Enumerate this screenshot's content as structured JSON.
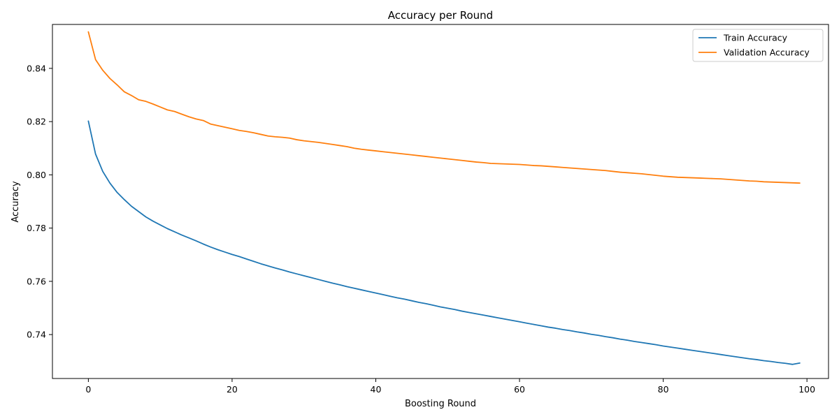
{
  "chart_data": {
    "type": "line",
    "title": "Accuracy per Round",
    "xlabel": "Boosting Round",
    "ylabel": "Accuracy",
    "xlim": [
      -5,
      103
    ],
    "ylim": [
      0.7235,
      0.8565
    ],
    "xticks": [
      0,
      20,
      40,
      60,
      80,
      100
    ],
    "yticks": [
      0.74,
      0.76,
      0.78,
      0.8,
      0.82,
      0.84
    ],
    "xtick_labels": [
      "0",
      "20",
      "40",
      "60",
      "80",
      "100"
    ],
    "ytick_labels": [
      "0.74",
      "0.76",
      "0.78",
      "0.80",
      "0.82",
      "0.84"
    ],
    "grid": false,
    "legend_position": "top-right",
    "series": [
      {
        "name": "Train Accuracy",
        "color": "#1f77b4",
        "x": [
          0,
          1,
          2,
          3,
          4,
          5,
          6,
          7,
          8,
          9,
          10,
          11,
          12,
          13,
          14,
          15,
          16,
          17,
          18,
          19,
          20,
          21,
          22,
          23,
          24,
          25,
          26,
          27,
          28,
          29,
          30,
          31,
          32,
          33,
          34,
          35,
          36,
          37,
          38,
          39,
          40,
          41,
          42,
          43,
          44,
          45,
          46,
          47,
          48,
          49,
          50,
          51,
          52,
          53,
          54,
          55,
          56,
          57,
          58,
          59,
          60,
          61,
          62,
          63,
          64,
          65,
          66,
          67,
          68,
          69,
          70,
          71,
          72,
          73,
          74,
          75,
          76,
          77,
          78,
          79,
          80,
          81,
          82,
          83,
          84,
          85,
          86,
          87,
          88,
          89,
          90,
          91,
          92,
          93,
          94,
          95,
          96,
          97,
          98,
          99
        ],
        "values": [
          0.8202,
          0.8078,
          0.8013,
          0.7969,
          0.7934,
          0.7907,
          0.7882,
          0.7862,
          0.7842,
          0.7826,
          0.7812,
          0.7798,
          0.7786,
          0.7774,
          0.7763,
          0.7752,
          0.774,
          0.7729,
          0.7719,
          0.771,
          0.7701,
          0.7693,
          0.7684,
          0.7675,
          0.7666,
          0.7658,
          0.765,
          0.7643,
          0.7635,
          0.7628,
          0.7621,
          0.7614,
          0.7607,
          0.76,
          0.7593,
          0.7587,
          0.758,
          0.7574,
          0.7568,
          0.7562,
          0.7556,
          0.755,
          0.7544,
          0.7538,
          0.7533,
          0.7527,
          0.7521,
          0.7516,
          0.751,
          0.7504,
          0.7499,
          0.7494,
          0.7488,
          0.7483,
          0.7478,
          0.7473,
          0.7468,
          0.7463,
          0.7458,
          0.7453,
          0.7448,
          0.7443,
          0.7438,
          0.7433,
          0.7428,
          0.7424,
          0.7419,
          0.7415,
          0.741,
          0.7406,
          0.7401,
          0.7397,
          0.7392,
          0.7388,
          0.7383,
          0.7379,
          0.7374,
          0.737,
          0.7366,
          0.7362,
          0.7357,
          0.7353,
          0.7349,
          0.7345,
          0.7341,
          0.7337,
          0.7333,
          0.7329,
          0.7325,
          0.7321,
          0.7317,
          0.7313,
          0.7309,
          0.7306,
          0.7302,
          0.7299,
          0.7295,
          0.7292,
          0.7288,
          0.7293
        ]
      },
      {
        "name": "Validation Accuracy",
        "color": "#ff7f0e",
        "x": [
          0,
          1,
          2,
          3,
          4,
          5,
          6,
          7,
          8,
          9,
          10,
          11,
          12,
          13,
          14,
          15,
          16,
          17,
          18,
          19,
          20,
          21,
          22,
          23,
          24,
          25,
          26,
          27,
          28,
          29,
          30,
          31,
          32,
          33,
          34,
          35,
          36,
          37,
          38,
          39,
          40,
          41,
          42,
          43,
          44,
          45,
          46,
          47,
          48,
          49,
          50,
          51,
          52,
          53,
          54,
          55,
          56,
          57,
          58,
          59,
          60,
          61,
          62,
          63,
          64,
          65,
          66,
          67,
          68,
          69,
          70,
          71,
          72,
          73,
          74,
          75,
          76,
          77,
          78,
          79,
          80,
          81,
          82,
          83,
          84,
          85,
          86,
          87,
          88,
          89,
          90,
          91,
          92,
          93,
          94,
          95,
          96,
          97,
          98,
          99
        ],
        "values": [
          0.8537,
          0.8433,
          0.8393,
          0.8362,
          0.8338,
          0.8312,
          0.8298,
          0.8282,
          0.8276,
          0.8266,
          0.8255,
          0.8244,
          0.8238,
          0.8228,
          0.8218,
          0.821,
          0.8204,
          0.8191,
          0.8185,
          0.8179,
          0.8173,
          0.8167,
          0.8163,
          0.8158,
          0.8152,
          0.8146,
          0.8143,
          0.8141,
          0.8138,
          0.8132,
          0.8128,
          0.8125,
          0.8122,
          0.8118,
          0.8114,
          0.811,
          0.8106,
          0.81,
          0.8096,
          0.8093,
          0.809,
          0.8087,
          0.8084,
          0.8081,
          0.8078,
          0.8075,
          0.8072,
          0.8069,
          0.8066,
          0.8063,
          0.806,
          0.8057,
          0.8054,
          0.8051,
          0.8048,
          0.8046,
          0.8043,
          0.8042,
          0.8041,
          0.804,
          0.8039,
          0.8037,
          0.8035,
          0.8034,
          0.8032,
          0.803,
          0.8028,
          0.8026,
          0.8024,
          0.8022,
          0.802,
          0.8018,
          0.8016,
          0.8013,
          0.801,
          0.8008,
          0.8006,
          0.8004,
          0.8001,
          0.7998,
          0.7995,
          0.7993,
          0.7991,
          0.799,
          0.7989,
          0.7988,
          0.7987,
          0.7986,
          0.7985,
          0.7983,
          0.7981,
          0.7979,
          0.7977,
          0.7976,
          0.7974,
          0.7973,
          0.7972,
          0.7971,
          0.797,
          0.7969
        ]
      }
    ]
  }
}
